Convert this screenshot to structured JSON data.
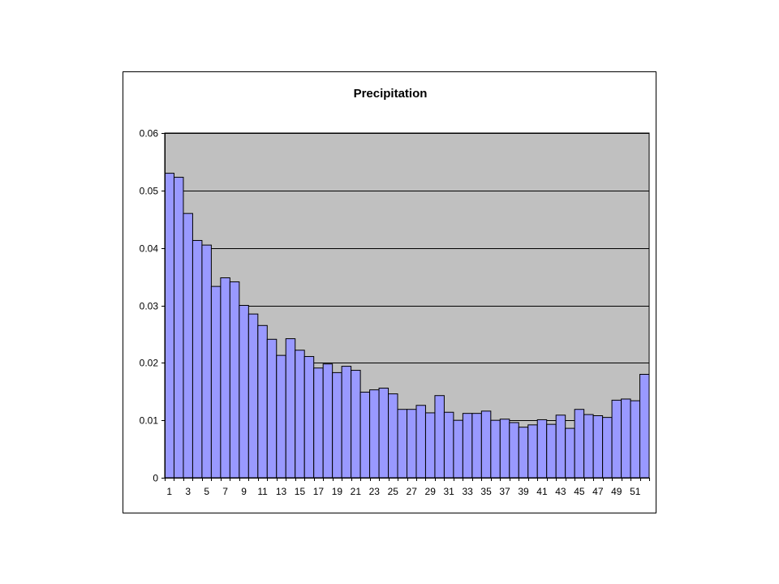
{
  "chart_data": {
    "type": "bar",
    "title": "Precipitation",
    "xlabel": "",
    "ylabel": "",
    "ylim": [
      0,
      0.06
    ],
    "yticks": [
      "0",
      "0.01",
      "0.02",
      "0.03",
      "0.04",
      "0.05",
      "0.06"
    ],
    "categories": [
      1,
      2,
      3,
      4,
      5,
      6,
      7,
      8,
      9,
      10,
      11,
      12,
      13,
      14,
      15,
      16,
      17,
      18,
      19,
      20,
      21,
      22,
      23,
      24,
      25,
      26,
      27,
      28,
      29,
      30,
      31,
      32,
      33,
      34,
      35,
      36,
      37,
      38,
      39,
      40,
      41,
      42,
      43,
      44,
      45,
      46,
      47,
      48,
      49,
      50,
      51,
      52
    ],
    "xtick_labels": [
      "1",
      "3",
      "5",
      "7",
      "9",
      "11",
      "13",
      "15",
      "17",
      "19",
      "21",
      "23",
      "25",
      "27",
      "29",
      "31",
      "33",
      "35",
      "37",
      "39",
      "41",
      "43",
      "45",
      "47",
      "49",
      "51"
    ],
    "values": [
      0.053,
      0.0523,
      0.046,
      0.0413,
      0.0405,
      0.0333,
      0.0348,
      0.0341,
      0.03,
      0.0285,
      0.0265,
      0.0241,
      0.0213,
      0.0242,
      0.0222,
      0.0211,
      0.0191,
      0.0198,
      0.0183,
      0.0194,
      0.0187,
      0.0149,
      0.0153,
      0.0156,
      0.0146,
      0.0119,
      0.0119,
      0.0126,
      0.0113,
      0.0143,
      0.0114,
      0.01,
      0.0112,
      0.0112,
      0.0116,
      0.01,
      0.0102,
      0.0096,
      0.0088,
      0.0092,
      0.0101,
      0.0093,
      0.0109,
      0.0086,
      0.0119,
      0.011,
      0.0108,
      0.0105,
      0.0135,
      0.0137,
      0.0134,
      0.018
    ],
    "grid": true,
    "legend": "none",
    "colors": {
      "bar_fill": "#9999ff",
      "bar_stroke": "#000000",
      "plot_background": "#c0c0c0",
      "frame": "#000000",
      "gridline": "#000000"
    }
  }
}
